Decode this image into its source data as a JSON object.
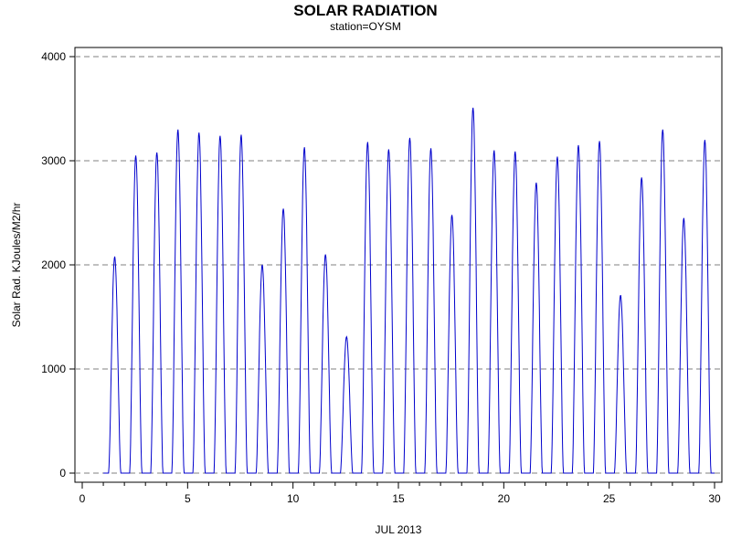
{
  "chart_data": {
    "type": "line",
    "title": "SOLAR RADIATION",
    "subtitle": "station=OYSM",
    "xlabel": "JUL 2013",
    "ylabel": "Solar Rad. KJoules/M2/hr",
    "xlim": [
      0,
      30
    ],
    "ylim": [
      0,
      4000
    ],
    "x_ticks": [
      0,
      5,
      10,
      15,
      20,
      25,
      30
    ],
    "y_ticks": [
      0,
      1000,
      2000,
      3000,
      4000
    ],
    "grid": "horizontal dashed",
    "series_color": "#0000cc",
    "daily_peaks": [
      {
        "day": 1,
        "peak": 2080
      },
      {
        "day": 2,
        "peak": 3050
      },
      {
        "day": 3,
        "peak": 3080
      },
      {
        "day": 4,
        "peak": 3300
      },
      {
        "day": 5,
        "peak": 3270
      },
      {
        "day": 6,
        "peak": 3240
      },
      {
        "day": 7,
        "peak": 3250
      },
      {
        "day": 8,
        "peak": 2000
      },
      {
        "day": 9,
        "peak": 2540
      },
      {
        "day": 10,
        "peak": 3130
      },
      {
        "day": 11,
        "peak": 2100
      },
      {
        "day": 12,
        "peak": 1310
      },
      {
        "day": 13,
        "peak": 3180
      },
      {
        "day": 14,
        "peak": 3110
      },
      {
        "day": 15,
        "peak": 3220
      },
      {
        "day": 16,
        "peak": 3120
      },
      {
        "day": 17,
        "peak": 2480
      },
      {
        "day": 18,
        "peak": 3510
      },
      {
        "day": 19,
        "peak": 3100
      },
      {
        "day": 20,
        "peak": 3090
      },
      {
        "day": 21,
        "peak": 2790
      },
      {
        "day": 22,
        "peak": 3040
      },
      {
        "day": 23,
        "peak": 3150
      },
      {
        "day": 24,
        "peak": 3190
      },
      {
        "day": 25,
        "peak": 1710
      },
      {
        "day": 26,
        "peak": 2840
      },
      {
        "day": 27,
        "peak": 3300
      },
      {
        "day": 28,
        "peak": 2450
      },
      {
        "day": 29,
        "peak": 3200
      }
    ]
  }
}
